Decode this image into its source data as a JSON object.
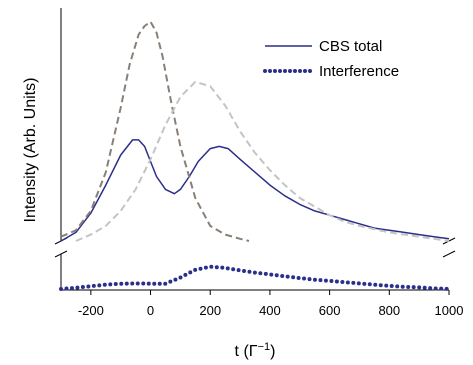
{
  "chart_data": {
    "type": "line",
    "xlabel": "t (Γ",
    "xlabel_sup": "−1",
    "xlabel_close": ")",
    "ylabel": "Intensity (Arb. Units)",
    "xlim": [
      -300,
      1000
    ],
    "x_ticks": [
      -200,
      0,
      200,
      400,
      600,
      800,
      1000
    ],
    "x_tick_labels": [
      "-200",
      "0",
      "200",
      "400",
      "600",
      "800",
      "1000"
    ],
    "axis_break": true,
    "legend": {
      "placement": "top-right"
    },
    "series": [
      {
        "name": "CBS total",
        "style": "solid",
        "color": "#2b2f8a",
        "panel": "upper",
        "x": [
          -300,
          -250,
          -200,
          -150,
          -100,
          -60,
          -40,
          -20,
          0,
          20,
          50,
          80,
          100,
          130,
          160,
          200,
          230,
          260,
          300,
          350,
          400,
          450,
          500,
          550,
          600,
          650,
          700,
          750,
          800,
          850,
          900,
          950,
          1000
        ],
        "y": [
          0.0,
          0.04,
          0.13,
          0.26,
          0.4,
          0.47,
          0.47,
          0.44,
          0.37,
          0.3,
          0.24,
          0.22,
          0.24,
          0.3,
          0.37,
          0.43,
          0.44,
          0.43,
          0.38,
          0.32,
          0.26,
          0.21,
          0.17,
          0.14,
          0.12,
          0.1,
          0.08,
          0.06,
          0.05,
          0.04,
          0.03,
          0.02,
          0.01
        ]
      },
      {
        "name": "Interference",
        "style": "dotted",
        "color": "#2b2f8a",
        "panel": "lower",
        "x": [
          -300,
          -250,
          -200,
          -150,
          -100,
          -50,
          0,
          50,
          100,
          150,
          200,
          250,
          300,
          350,
          400,
          450,
          500,
          550,
          600,
          650,
          700,
          750,
          800,
          850,
          900,
          950,
          1000
        ],
        "y": [
          0.0,
          0.04,
          0.09,
          0.14,
          0.17,
          0.18,
          0.17,
          0.17,
          0.37,
          0.62,
          0.72,
          0.68,
          0.6,
          0.53,
          0.47,
          0.41,
          0.35,
          0.3,
          0.26,
          0.22,
          0.18,
          0.14,
          0.1,
          0.07,
          0.05,
          0.02,
          0.0
        ]
      },
      {
        "style": "dashed",
        "color": "#888076",
        "panel": "upper",
        "x": [
          -300,
          -250,
          -200,
          -150,
          -100,
          -70,
          -40,
          -20,
          0,
          20,
          40,
          70,
          100,
          150,
          200,
          250,
          300,
          330
        ],
        "y": [
          0.02,
          0.05,
          0.14,
          0.32,
          0.62,
          0.82,
          0.96,
          1.0,
          1.02,
          0.97,
          0.86,
          0.64,
          0.44,
          0.2,
          0.07,
          0.03,
          0.01,
          0.0
        ]
      },
      {
        "style": "dashed",
        "color": "#c4c4c4",
        "panel": "upper",
        "x": [
          -250,
          -200,
          -150,
          -100,
          -50,
          0,
          50,
          100,
          150,
          200,
          250,
          300,
          350,
          400,
          450,
          500,
          550,
          600,
          650,
          700,
          800,
          900,
          1000
        ],
        "y": [
          0.0,
          0.03,
          0.07,
          0.14,
          0.24,
          0.38,
          0.54,
          0.67,
          0.74,
          0.72,
          0.63,
          0.51,
          0.41,
          0.33,
          0.26,
          0.2,
          0.16,
          0.12,
          0.09,
          0.07,
          0.04,
          0.02,
          0.0
        ]
      }
    ]
  }
}
